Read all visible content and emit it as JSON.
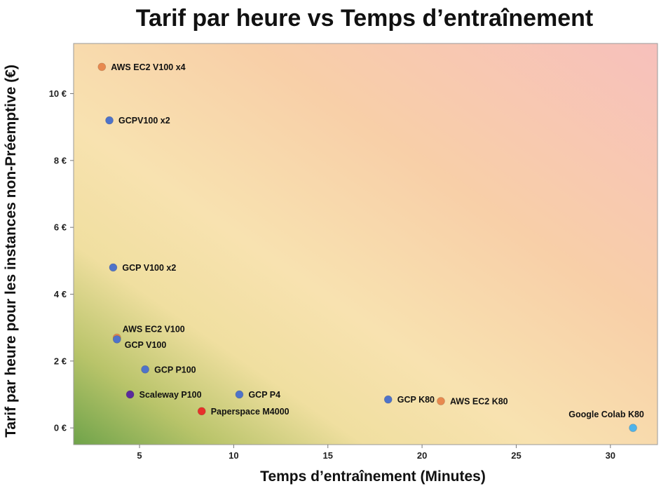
{
  "chart_data": {
    "type": "scatter",
    "title": "Tarif par heure vs Temps d’entraînement",
    "xlabel": "Temps d’entraînement (Minutes)",
    "ylabel": "Tarif par heure pour les instances non-Préemptive (€)",
    "xlim": [
      1.5,
      32.5
    ],
    "ylim": [
      -0.5,
      11.5
    ],
    "x_ticks": [
      5,
      10,
      15,
      20,
      25,
      30
    ],
    "x_tick_labels": [
      "5",
      "10",
      "15",
      "20",
      "25",
      "30"
    ],
    "y_ticks": [
      0,
      2,
      4,
      6,
      8,
      10
    ],
    "y_tick_labels": [
      "0 €",
      "2 €",
      "4 €",
      "6 €",
      "8 €",
      "10 €"
    ],
    "grid": false,
    "background": "gradient green (bottom-left) to yellow to pink (top-right)",
    "points": [
      {
        "label": "AWS EC2 V100 x4",
        "x": 3.0,
        "y": 10.8,
        "color": "#e8894f"
      },
      {
        "label": "GCPV100 x2",
        "x": 3.4,
        "y": 9.2,
        "color": "#4f73c9"
      },
      {
        "label": "GCP V100 x2",
        "x": 3.6,
        "y": 4.8,
        "color": "#4f73c9"
      },
      {
        "label": "AWS EC2 V100",
        "x": 3.8,
        "y": 2.7,
        "color": "#e8894f"
      },
      {
        "label": "GCP V100",
        "x": 3.8,
        "y": 2.65,
        "color": "#4f73c9"
      },
      {
        "label": "GCP P100",
        "x": 5.3,
        "y": 1.75,
        "color": "#4f73c9"
      },
      {
        "label": "Scaleway P100",
        "x": 4.5,
        "y": 1.0,
        "color": "#5a2a9c"
      },
      {
        "label": "GCP P4",
        "x": 10.3,
        "y": 1.0,
        "color": "#4f73c9"
      },
      {
        "label": "Paperspace M4000",
        "x": 8.3,
        "y": 0.5,
        "color": "#e8312b"
      },
      {
        "label": "GCP K80",
        "x": 18.2,
        "y": 0.85,
        "color": "#4f73c9"
      },
      {
        "label": "AWS EC2 K80",
        "x": 21.0,
        "y": 0.8,
        "color": "#e8894f"
      },
      {
        "label": "Google Colab K80",
        "x": 31.2,
        "y": 0.0,
        "color": "#4fb3ea"
      }
    ]
  }
}
